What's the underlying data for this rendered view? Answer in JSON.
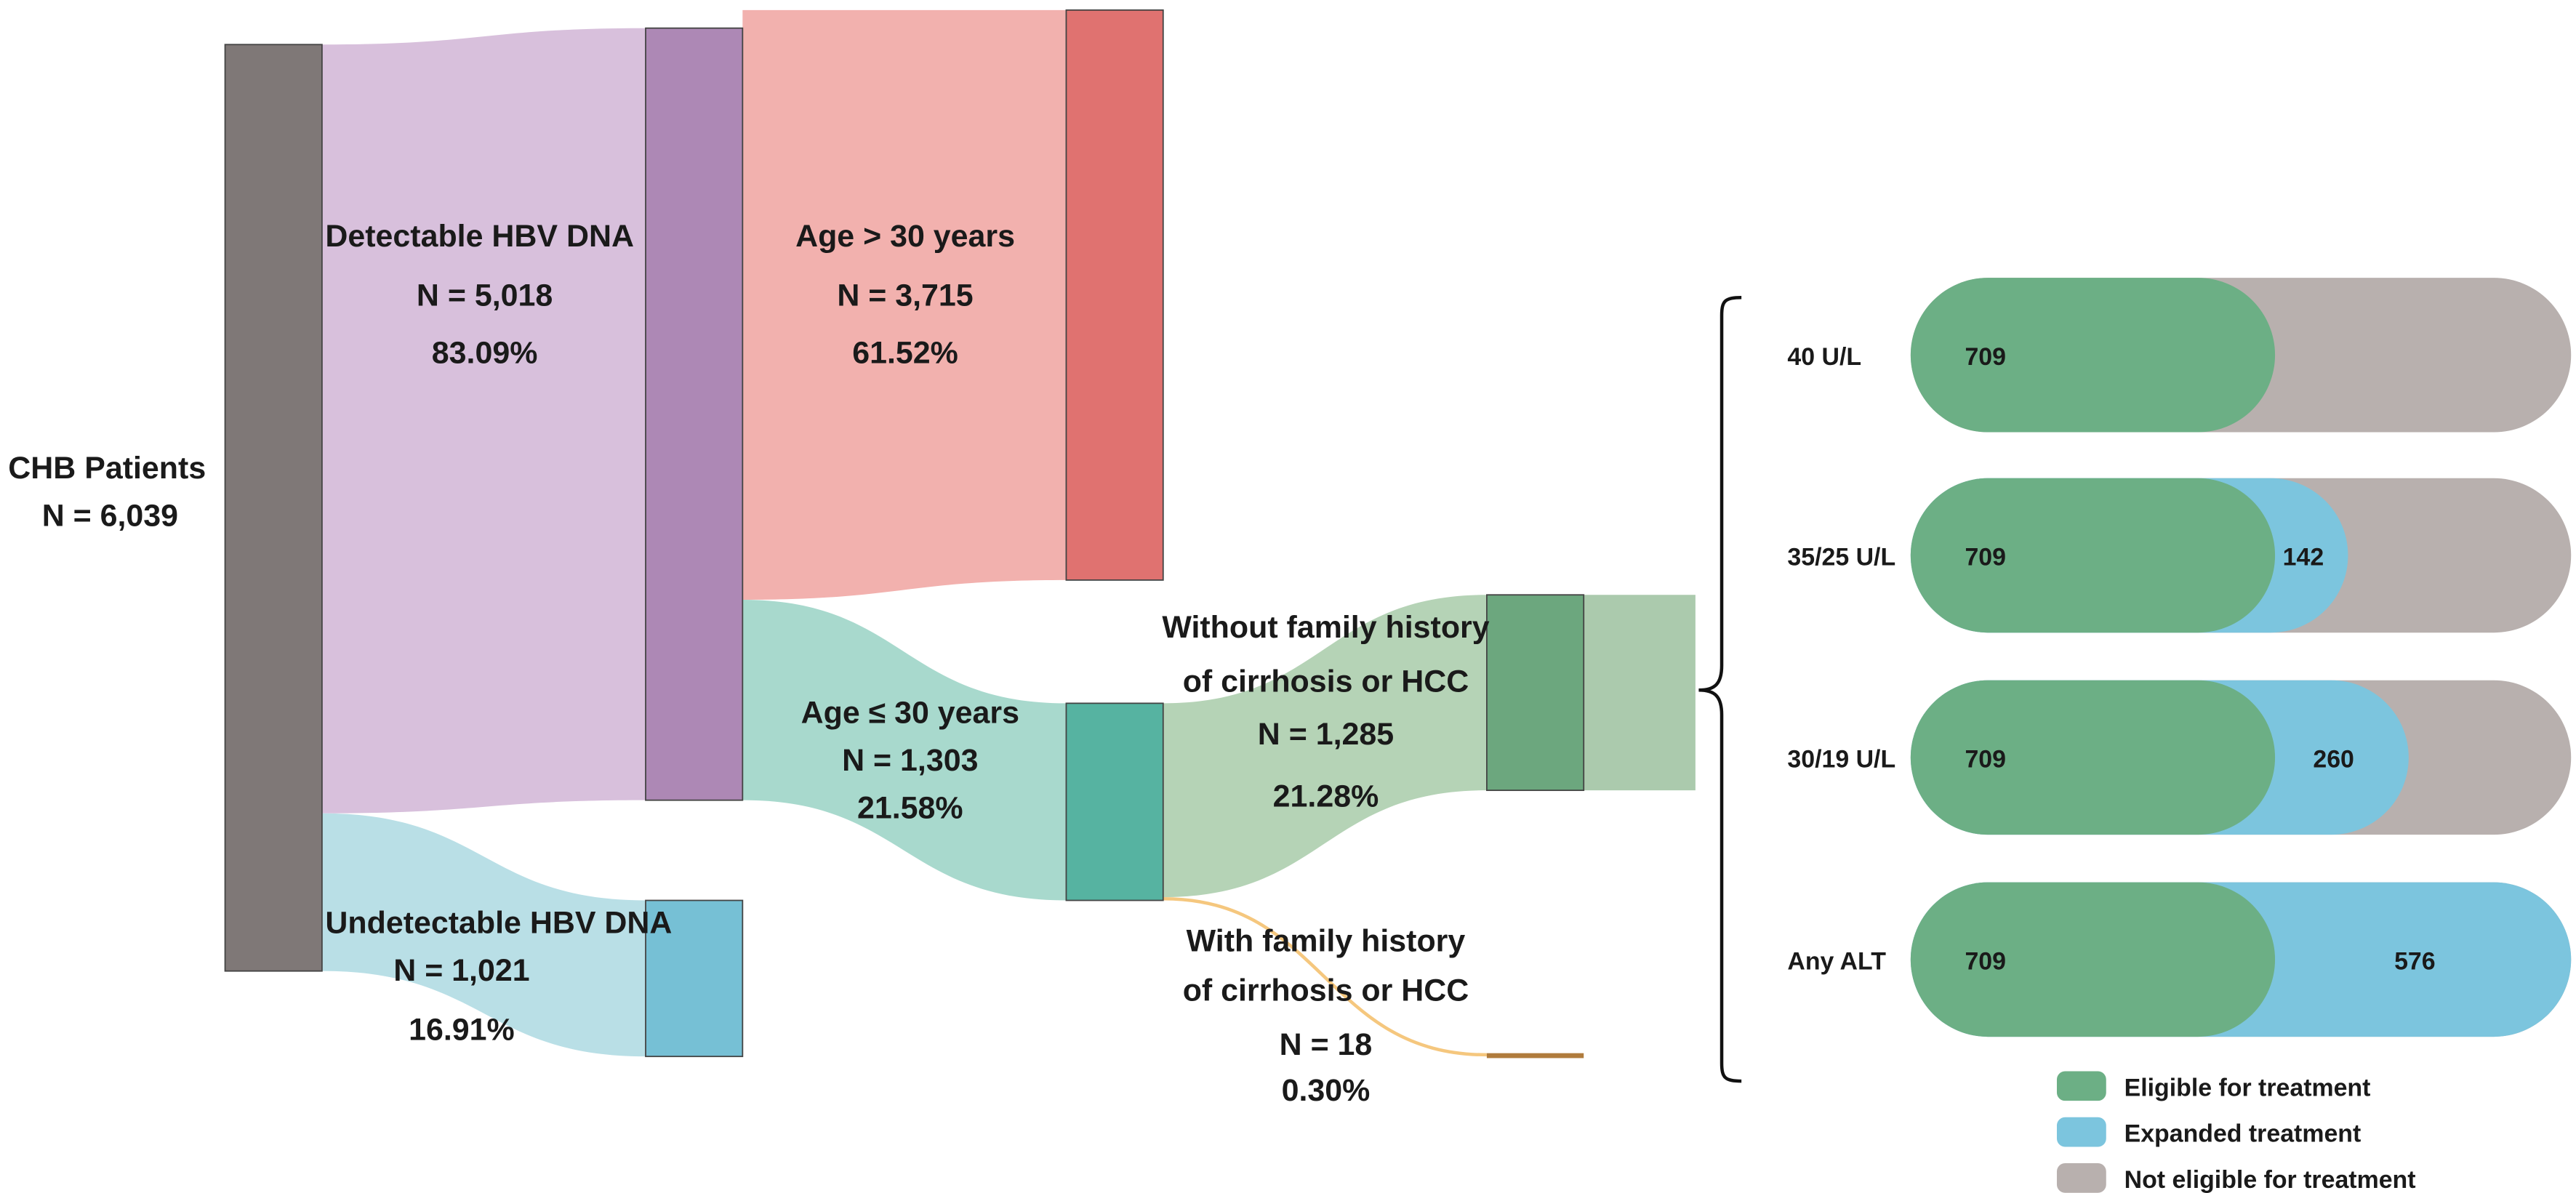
{
  "colors": {
    "chb": "#7f7877",
    "detectable_node": "#ad88b5",
    "detectable_flow": "#d8c0dc",
    "undetectable_node": "#76c0d5",
    "undetectable_flow": "#b9dfe6",
    "age_gt30_node": "#e07270",
    "age_gt30_flow": "#f2b1ae",
    "age_le30_node": "#56b3a1",
    "age_le30_flow": "#a8d9cd",
    "without_node": "#6ca77e",
    "without_flow": "#b5d3b6",
    "without_tail": "#abcaad",
    "with_node": "#b07b3c",
    "with_flow": "#f5c77e",
    "eligible": "#6caf85",
    "expanded": "#7cc5de",
    "not_eligible": "#b8b0ae"
  },
  "nodes": {
    "chb": {
      "title": "CHB Patients",
      "n": "N = 6,039"
    },
    "detectable": {
      "title": "Detectable HBV DNA",
      "n": "N = 5,018",
      "pct": "83.09%"
    },
    "undetectable": {
      "title": "Undetectable HBV DNA",
      "n": "N = 1,021",
      "pct": "16.91%"
    },
    "age_gt30": {
      "title": "Age > 30 years",
      "n": "N = 3,715",
      "pct": "61.52%"
    },
    "age_le30": {
      "title": "Age ≤ 30 years",
      "n": "N = 1,303",
      "pct": "21.58%"
    },
    "without_fh": {
      "title1": "Without family history",
      "title2": "of cirrhosis or HCC",
      "n": "N = 1,285",
      "pct": "21.28%"
    },
    "with_fh": {
      "title1": "With family history",
      "title2": "of cirrhosis or HCC",
      "n": "N = 18",
      "pct": "0.30%"
    }
  },
  "chart_data": {
    "type": "bar",
    "total": 1285,
    "categories": [
      "40 U/L",
      "35/25 U/L",
      "30/19 U/L",
      "Any ALT"
    ],
    "series": [
      {
        "name": "Eligible for treatment",
        "values": [
          709,
          709,
          709,
          709
        ]
      },
      {
        "name": "Expanded treatment",
        "values": [
          0,
          142,
          260,
          576
        ]
      },
      {
        "name": "Not eligible for treatment",
        "values": [
          576,
          434,
          316,
          0
        ]
      }
    ],
    "labels": {
      "eligible": [
        "709",
        "709",
        "709",
        "709"
      ],
      "expanded": [
        "",
        "142",
        "260",
        "576"
      ]
    }
  },
  "legend": [
    "Eligible for treatment",
    "Expanded treatment",
    "Not eligible for treatment"
  ]
}
